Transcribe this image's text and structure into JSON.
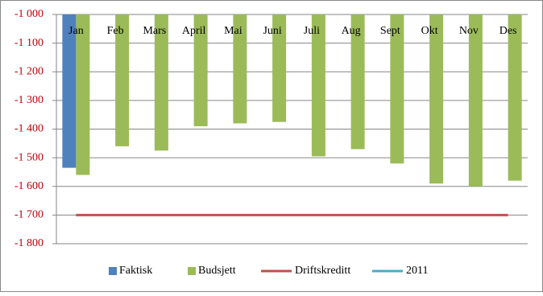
{
  "chart_data": {
    "type": "bar",
    "categories": [
      "Jan",
      "Feb",
      "Mars",
      "April",
      "Mai",
      "Juni",
      "Juli",
      "Aug",
      "Sept",
      "Okt",
      "Nov",
      "Des"
    ],
    "series": [
      {
        "name": "Faktisk",
        "kind": "bar",
        "color": "#4f81bd",
        "values": [
          -1535,
          null,
          null,
          null,
          null,
          null,
          null,
          null,
          null,
          null,
          null,
          null
        ]
      },
      {
        "name": "Budsjett",
        "kind": "bar",
        "color": "#9bbb59",
        "values": [
          -1560,
          -1460,
          -1475,
          -1390,
          -1380,
          -1375,
          -1495,
          -1470,
          -1520,
          -1590,
          -1600,
          -1580
        ]
      },
      {
        "name": "Driftskreditt",
        "kind": "line",
        "color": "#c0504d",
        "values": [
          -1700,
          -1700,
          -1700,
          -1700,
          -1700,
          -1700,
          -1700,
          -1700,
          -1700,
          -1700,
          -1700,
          -1700
        ]
      },
      {
        "name": "2011",
        "kind": "line",
        "color": "#4bacc6",
        "values": [
          null,
          null,
          null,
          null,
          null,
          null,
          null,
          null,
          null,
          null,
          null,
          null
        ]
      }
    ],
    "ylim": [
      -1800,
      -1000
    ],
    "yticks": [
      {
        "value": -1800,
        "label": "-1 800"
      },
      {
        "value": -1700,
        "label": "-1 700"
      },
      {
        "value": -1600,
        "label": "-1 600"
      },
      {
        "value": -1500,
        "label": "-1 500"
      },
      {
        "value": -1400,
        "label": "-1 400"
      },
      {
        "value": -1300,
        "label": "-1 300"
      },
      {
        "value": -1200,
        "label": "-1 200"
      },
      {
        "value": -1100,
        "label": "-1 100"
      },
      {
        "value": -1000,
        "label": "-1 000"
      }
    ],
    "ytick_color": "#c0000a",
    "grid": true,
    "legend": "bottom"
  }
}
